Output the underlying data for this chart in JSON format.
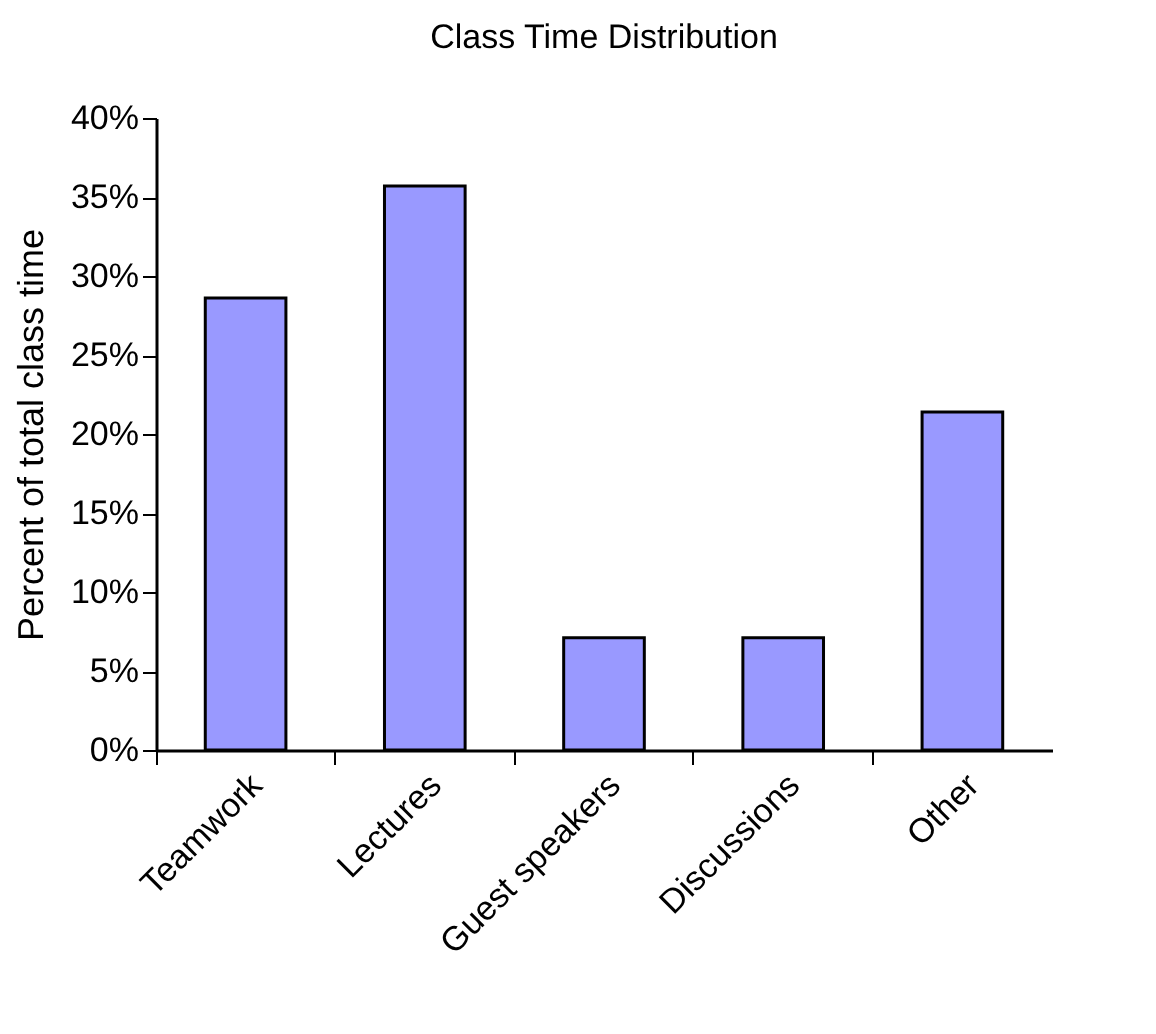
{
  "chart_data": {
    "type": "bar",
    "title": "Class Time Distribution",
    "ylabel": "Percent of total class time",
    "categories": [
      "Teamwork",
      "Lectures",
      "Guest speakers",
      "Discussions",
      "Other"
    ],
    "values": [
      28.6,
      35.7,
      7.1,
      7.1,
      21.4
    ],
    "color": "#9999ff",
    "ylim": [
      0,
      40
    ],
    "yticks": [
      {
        "value": 0,
        "label": "0%"
      },
      {
        "value": 5,
        "label": "5%"
      },
      {
        "value": 10,
        "label": "10%"
      },
      {
        "value": 15,
        "label": "15%"
      },
      {
        "value": 20,
        "label": "20%"
      },
      {
        "value": 25,
        "label": "25%"
      },
      {
        "value": 30,
        "label": "30%"
      },
      {
        "value": 35,
        "label": "35%"
      },
      {
        "value": 40,
        "label": "40%"
      }
    ],
    "grid": false
  }
}
